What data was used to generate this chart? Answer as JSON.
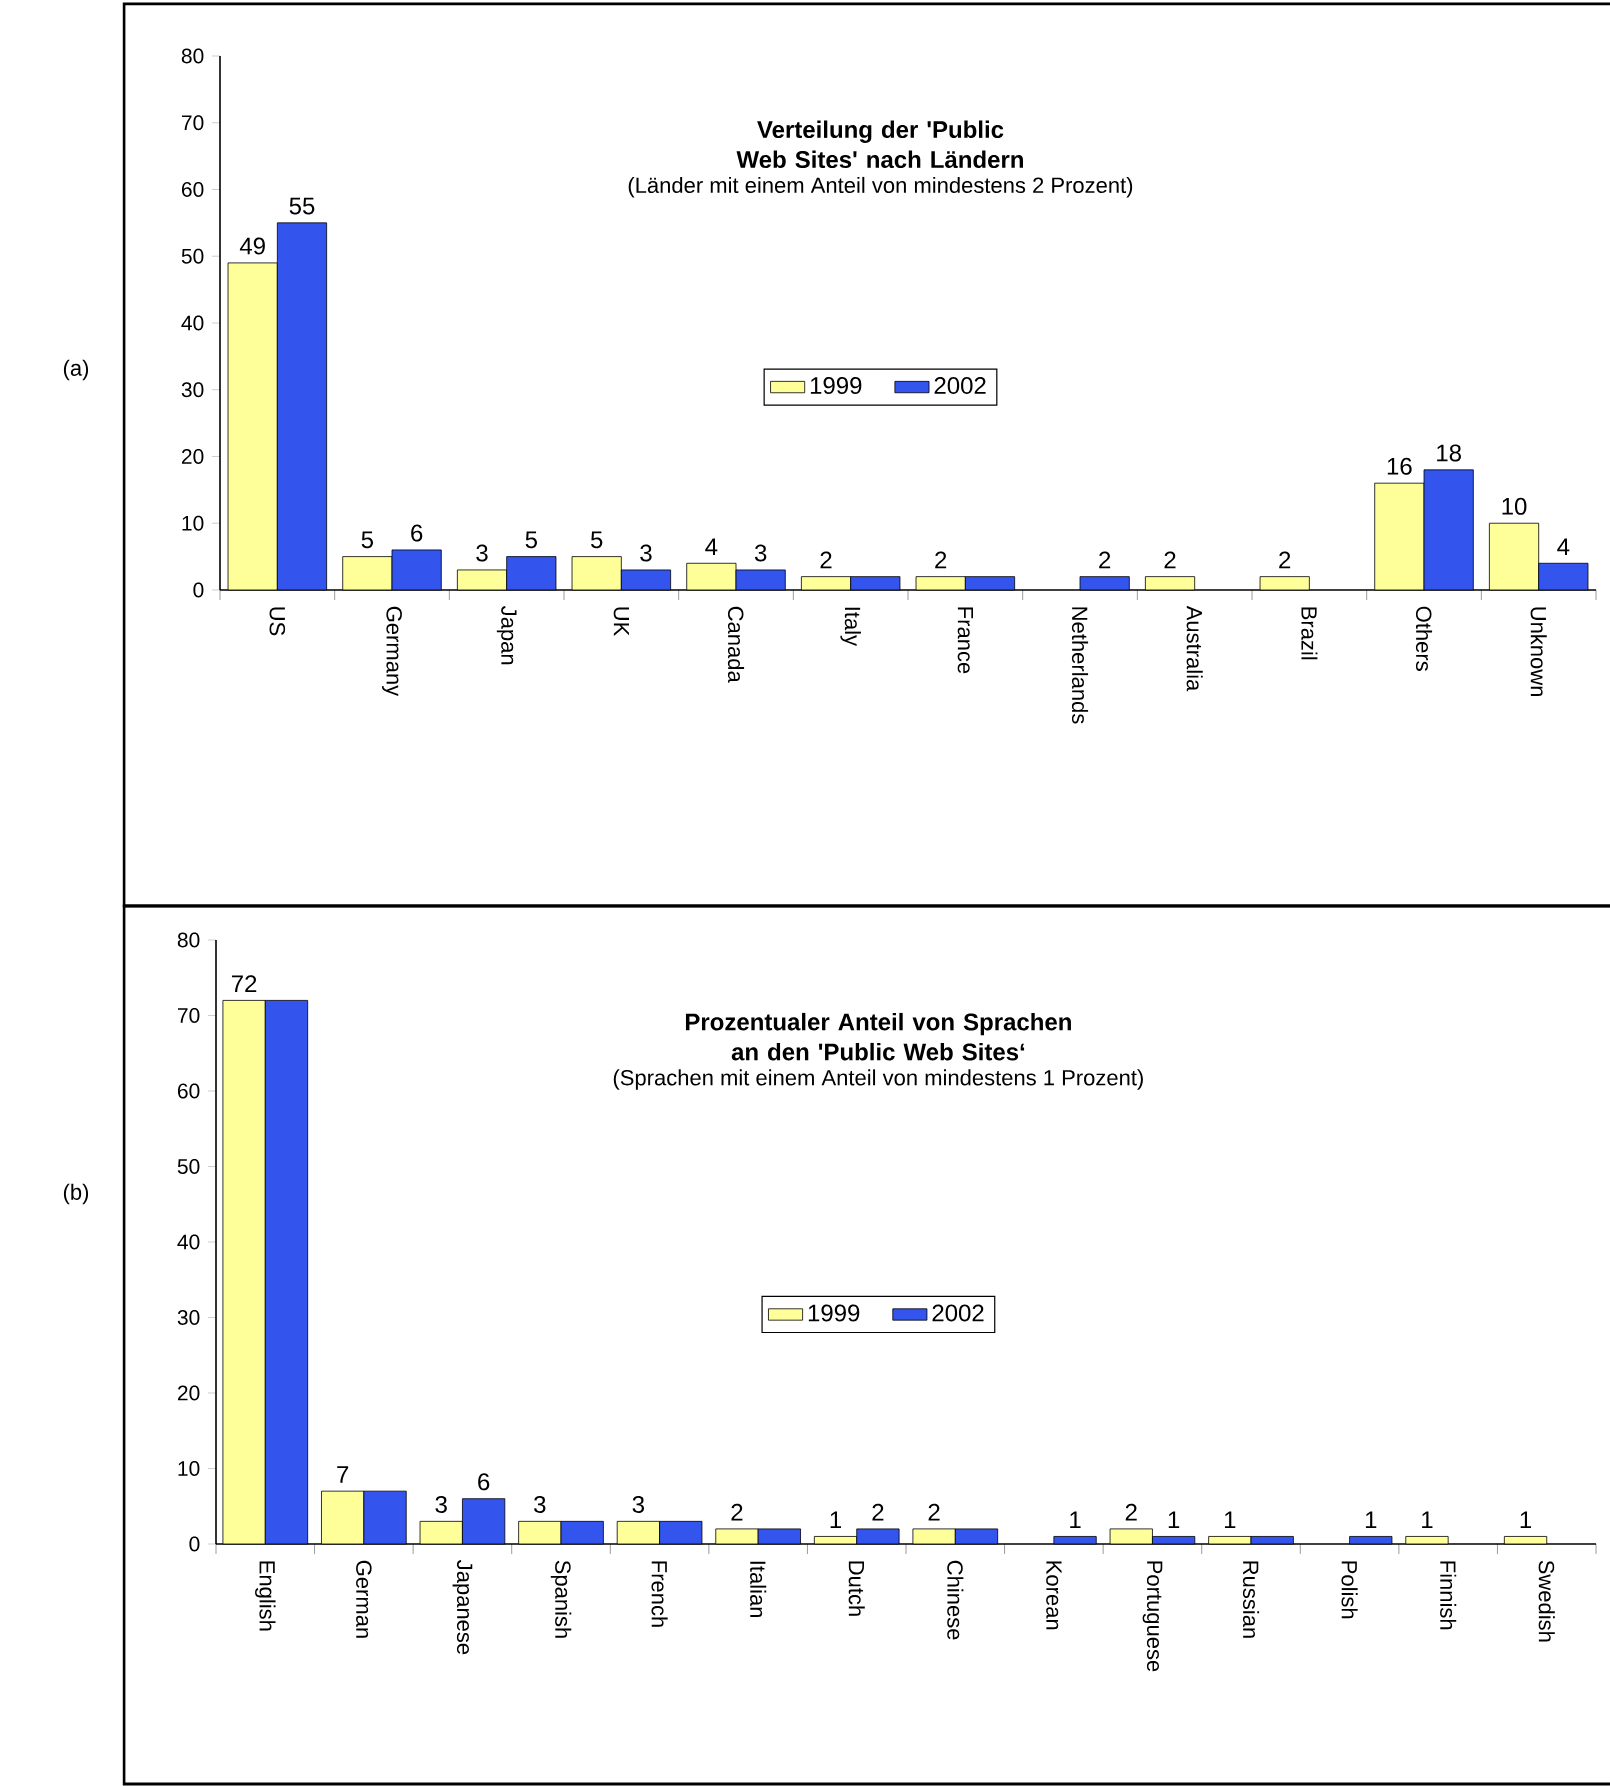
{
  "chart_data": [
    {
      "type": "bar",
      "title": "Verteilung der 'Public Web Sites' nach Ländern",
      "subtitle": "(Länder mit einem Anteil von mindestens 2 Prozent)",
      "categories": [
        "US",
        "Germany",
        "Japan",
        "UK",
        "Canada",
        "Italy",
        "France",
        "Netherlands",
        "Australia",
        "Brazil",
        "Others",
        "Unknown"
      ],
      "series": [
        {
          "name": "1999",
          "color": "#ffff99",
          "values": [
            49,
            5,
            3,
            5,
            4,
            2,
            2,
            null,
            2,
            2,
            16,
            10
          ],
          "value_labels": [
            "49",
            "5",
            "3",
            "5",
            "4",
            "2",
            "2",
            null,
            "2",
            "2",
            "16",
            "10"
          ]
        },
        {
          "name": "2002",
          "color": "#3355ee",
          "values": [
            55,
            6,
            5,
            3,
            3,
            2,
            2,
            2,
            null,
            null,
            18,
            4
          ],
          "value_labels": [
            "55",
            "6",
            "5",
            "3",
            "3",
            null,
            null,
            "2",
            null,
            null,
            "18",
            "4"
          ]
        }
      ],
      "ylim": [
        0,
        80
      ],
      "yticks": [
        0,
        10,
        20,
        30,
        40,
        50,
        60,
        70,
        80
      ],
      "legend": "center",
      "grid": false,
      "annotations": [
        "(a)"
      ]
    },
    {
      "type": "bar",
      "title": "Prozentualer Anteil von Sprachen an den 'Public Web Sites‘",
      "subtitle": "(Sprachen mit einem Anteil von mindestens 1 Prozent)",
      "categories": [
        "English",
        "German",
        "Japanese",
        "Spanish",
        "French",
        "Italian",
        "Dutch",
        "Chinese",
        "Korean",
        "Portuguese",
        "Russian",
        "Polish",
        "Finnish",
        "Swedish"
      ],
      "series": [
        {
          "name": "1999",
          "color": "#ffff99",
          "values": [
            72,
            7,
            3,
            3,
            3,
            2,
            1,
            2,
            null,
            2,
            1,
            null,
            1,
            1
          ],
          "value_labels": [
            "72",
            "7",
            "3",
            "3",
            "3",
            "2",
            "1",
            "2",
            null,
            "2",
            "1",
            null,
            "1",
            "1"
          ]
        },
        {
          "name": "2002",
          "color": "#3355ee",
          "values": [
            72,
            7,
            6,
            3,
            3,
            2,
            2,
            2,
            1,
            1,
            1,
            1,
            null,
            null
          ],
          "value_labels": [
            null,
            null,
            "6",
            null,
            null,
            null,
            "2",
            null,
            "1",
            "1",
            null,
            "1",
            null,
            null
          ]
        }
      ],
      "ylim": [
        0,
        80
      ],
      "yticks": [
        0,
        10,
        20,
        30,
        40,
        50,
        60,
        70,
        80
      ],
      "legend": "center",
      "grid": false,
      "annotations": [
        "(b)"
      ]
    }
  ]
}
